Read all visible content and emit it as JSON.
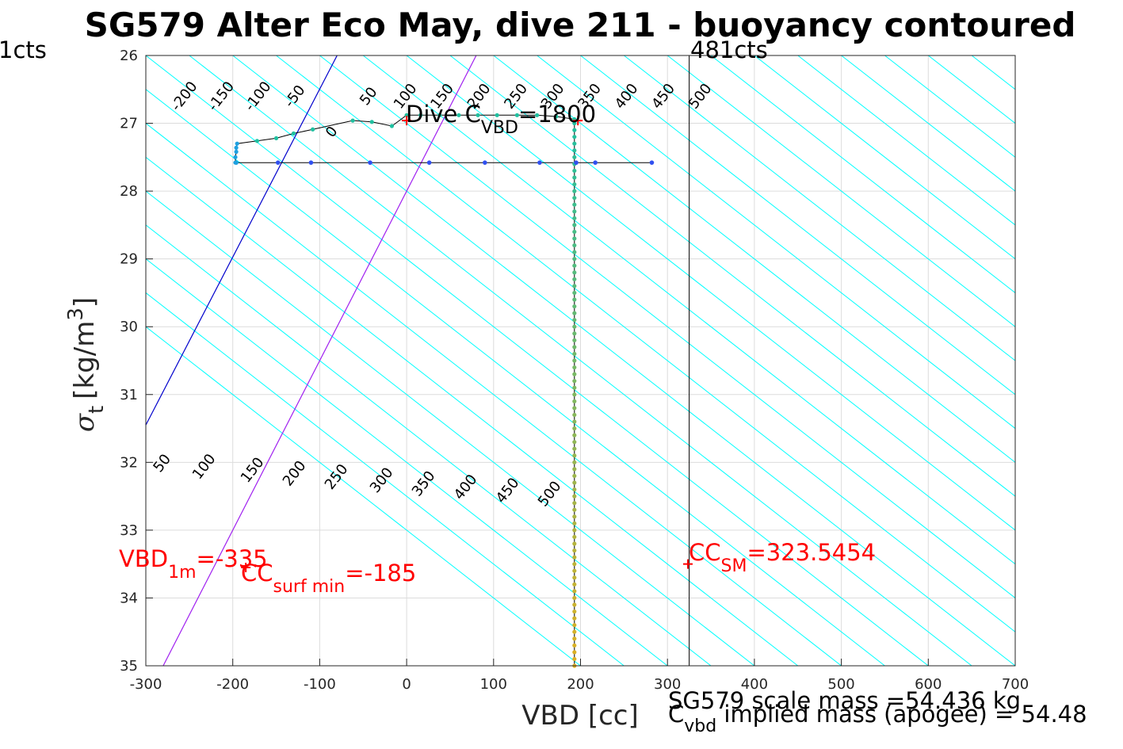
{
  "chart_data": {
    "type": "line",
    "title": "SG579 Alter Eco May, dive 211 - buoyancy contoured",
    "xlabel": "VBD [cc]",
    "ylabel_symbol": "σ",
    "ylabel_sub": "t",
    "ylabel_unit": "[kg/m",
    "ylabel_sup": "3",
    "ylabel_close": "]",
    "xlim": [
      -300,
      700
    ],
    "ylim": [
      26,
      35
    ],
    "y_reversed": true,
    "grid": true,
    "xticks": [
      -300,
      -200,
      -100,
      0,
      100,
      200,
      300,
      400,
      500,
      600,
      700
    ],
    "yticks": [
      26,
      27,
      28,
      29,
      30,
      31,
      32,
      33,
      34,
      35
    ],
    "colors": {
      "contour": "#00ffff",
      "sm_line": "#0000cc",
      "surf_line": "#a020f0",
      "marker": "#ff0000",
      "grid": "#dcdcdc",
      "axis": "#262626"
    },
    "contour_slope_cc_per_sigma": 100,
    "contour_top_values": [
      -200,
      -150,
      -100,
      -50,
      0,
      50,
      100,
      150,
      200,
      250,
      300,
      350,
      400,
      450,
      500
    ],
    "contour_bottom_values": [
      50,
      100,
      150,
      200,
      250,
      300,
      350,
      400,
      450,
      500
    ],
    "top_label_texts": [
      "-200",
      "-150",
      "-100",
      "-50",
      "0",
      "50",
      "100",
      "150",
      "200",
      "250",
      "300",
      "350",
      "400",
      "450",
      "500"
    ],
    "bottom_label_texts": [
      "50",
      "100",
      "150",
      "200",
      "250",
      "300",
      "350",
      "400",
      "450",
      "500"
    ],
    "sm_line_points": [
      [
        -300,
        31.45
      ],
      [
        -80,
        26.0
      ]
    ],
    "surf_line_points": [
      [
        -280,
        35.0
      ],
      [
        80,
        26.0
      ]
    ],
    "vbd_min_line_x": 325,
    "vbd_min_label": "481cts",
    "vbd_max_label_fragment": "1cts",
    "descent_series": {
      "name": "descent",
      "points": [
        [
          -197,
          27.58
        ],
        [
          -197,
          27.5
        ],
        [
          -196,
          27.42
        ],
        [
          -196,
          27.36
        ],
        [
          -195,
          27.3
        ],
        [
          -172,
          27.26
        ],
        [
          -150,
          27.22
        ],
        [
          -130,
          27.15
        ],
        [
          -108,
          27.09
        ],
        [
          -62,
          26.96
        ],
        [
          -40,
          26.98
        ],
        [
          -17,
          27.04
        ],
        [
          0,
          26.88
        ],
        [
          16,
          26.88
        ],
        [
          38,
          26.88
        ],
        [
          60,
          26.88
        ],
        [
          82,
          26.88
        ],
        [
          104,
          26.88
        ],
        [
          127,
          26.88
        ],
        [
          150,
          26.88
        ],
        [
          172,
          26.9
        ],
        [
          193,
          26.94
        ],
        [
          193,
          27.1
        ],
        [
          193,
          27.3
        ],
        [
          193,
          27.58
        ],
        [
          193,
          28.5
        ],
        [
          193,
          30.0
        ],
        [
          193,
          32.0
        ],
        [
          193,
          34.0
        ],
        [
          193,
          35.0
        ]
      ],
      "color_top": "#20c0a0",
      "color_bottom": "#e0b020"
    },
    "ascent_series": {
      "name": "ascent",
      "points": [
        [
          -196,
          27.58
        ],
        [
          -148,
          27.58
        ],
        [
          -110,
          27.58
        ],
        [
          -42,
          27.58
        ],
        [
          26,
          27.58
        ],
        [
          90,
          27.58
        ],
        [
          153,
          27.58
        ],
        [
          195,
          27.58
        ],
        [
          217,
          27.58
        ],
        [
          282,
          27.58
        ]
      ],
      "color": "#3050f0"
    },
    "markers": [
      {
        "x": 0,
        "y": 26.96
      },
      {
        "x": 197,
        "y": 26.96
      },
      {
        "x": 323.5,
        "y": 33.5
      },
      {
        "x": -185,
        "y": 33.55
      }
    ],
    "annotations": {
      "dive_c_label": "Dive C",
      "dive_c_sub": "VBD",
      "dive_c_value": "=1800",
      "vbd1m_label": "VBD",
      "vbd1m_sub": "1m",
      "vbd1m_value": "=-335",
      "ccsurf_label": "CC",
      "ccsurf_sub": "surf min",
      "ccsurf_value": "=-185",
      "ccsm_label": "CC",
      "ccsm_sub": "SM",
      "ccsm_value": "=323.5454",
      "scale_mass": "SG579 scale mass =54.436 kg",
      "implied_label": "C",
      "implied_sub": "vbd",
      "implied_value": " implied mass (apogee) = 54.48"
    }
  }
}
